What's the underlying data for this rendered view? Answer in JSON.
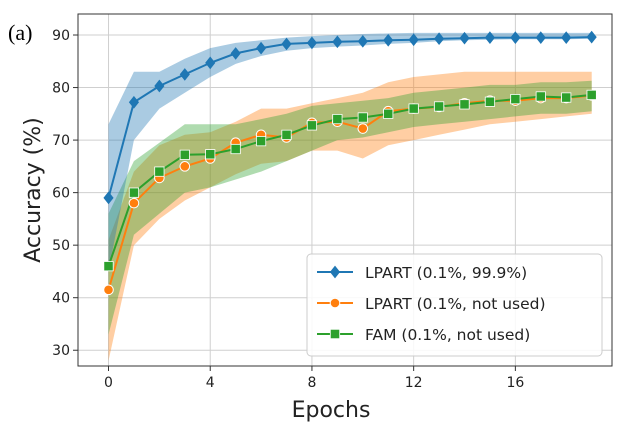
{
  "panel_label": "(a)",
  "chart_data": {
    "type": "line",
    "xlabel": "Epochs",
    "ylabel": "Accuracy (%)",
    "xlim": [
      -1.2,
      19.8
    ],
    "ylim": [
      27,
      94
    ],
    "xticks": [
      0,
      4,
      8,
      12,
      16
    ],
    "yticks": [
      30,
      40,
      50,
      60,
      70,
      80,
      90
    ],
    "grid": true,
    "legend_position": "lower-right",
    "x": [
      0,
      1,
      2,
      3,
      4,
      5,
      6,
      7,
      8,
      9,
      10,
      11,
      12,
      13,
      14,
      15,
      16,
      17,
      18,
      19
    ],
    "series": [
      {
        "name": "LPART (0.1%, 99.9%)",
        "color": "#1f77b4",
        "marker": "diamond",
        "values": [
          59,
          77.2,
          80.3,
          82.5,
          84.7,
          86.5,
          87.5,
          88.3,
          88.5,
          88.7,
          88.8,
          89.0,
          89.1,
          89.3,
          89.4,
          89.5,
          89.5,
          89.5,
          89.5,
          89.6
        ],
        "lower": [
          45,
          70,
          76,
          79,
          82,
          84.5,
          86,
          87,
          87.5,
          87.8,
          88,
          88.3,
          88.5,
          88.8,
          89,
          89.1,
          89.2,
          89.2,
          89.2,
          89.3
        ],
        "upper": [
          73,
          83,
          83,
          85.5,
          87.5,
          88.5,
          89,
          89.5,
          89.8,
          90,
          90.2,
          90.3,
          90.4,
          90.4,
          90.4,
          90.4,
          90.4,
          90.4,
          90.4,
          90.4
        ]
      },
      {
        "name": "LPART (0.1%, not used)",
        "color": "#ff7f0e",
        "marker": "circle",
        "values": [
          41.5,
          58,
          62.8,
          65,
          66.5,
          69.5,
          71,
          70.5,
          73.3,
          73.5,
          72.2,
          75.5,
          76,
          76.3,
          77,
          77.5,
          77.5,
          78,
          78,
          78.5
        ],
        "lower": [
          28,
          50,
          55,
          58.5,
          61,
          63.5,
          65.5,
          66,
          68,
          68,
          66.5,
          69,
          70,
          71,
          72,
          73,
          73.5,
          74,
          74.5,
          75
        ],
        "upper": [
          51,
          64,
          69,
          71,
          71.5,
          73.5,
          76,
          76,
          77,
          78,
          79,
          81,
          82,
          82.5,
          83,
          83,
          83,
          83,
          83,
          83
        ]
      },
      {
        "name": "FAM (0.1%, not used)",
        "color": "#2ca02c",
        "marker": "square",
        "values": [
          46,
          60,
          64,
          67.2,
          67.3,
          68.3,
          69.8,
          71,
          72.8,
          74,
          74.3,
          75,
          76,
          76.4,
          76.8,
          77.3,
          77.8,
          78.3,
          78.1,
          78.6
        ],
        "lower": [
          33,
          52,
          56,
          60,
          61,
          62.5,
          64,
          66,
          68,
          70,
          70.5,
          71.5,
          72.5,
          73,
          73.5,
          74,
          74.5,
          75,
          75,
          75.5
        ],
        "upper": [
          56,
          66,
          69.5,
          73,
          73,
          73,
          74,
          75,
          76.5,
          77,
          77.5,
          78,
          79,
          79.5,
          80,
          80.5,
          80.5,
          81,
          81,
          81.3
        ]
      }
    ]
  }
}
